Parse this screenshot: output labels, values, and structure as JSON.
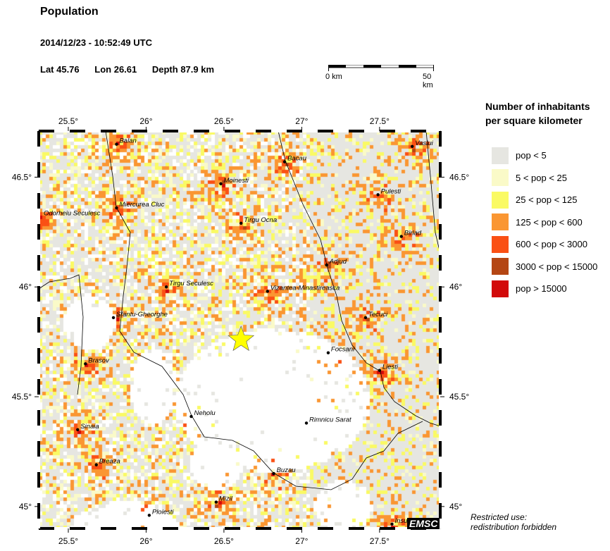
{
  "header": {
    "title": "Population",
    "datetime": "2014/12/23 - 10:52:49 UTC",
    "lat": "Lat 45.76",
    "lon": "Lon  26.61",
    "depth": "Depth  87.9 km"
  },
  "scale": {
    "start": "0 km",
    "end": "50 km"
  },
  "map": {
    "extent": {
      "lon": [
        25.31,
        27.89
      ],
      "lat": [
        44.9,
        46.71
      ]
    },
    "lon_ticks": [
      {
        "v": 25.5,
        "label": "25.5°"
      },
      {
        "v": 26,
        "label": "26°"
      },
      {
        "v": 26.5,
        "label": "26.5°"
      },
      {
        "v": 27,
        "label": "27°"
      },
      {
        "v": 27.5,
        "label": "27.5°"
      }
    ],
    "lat_ticks": [
      {
        "v": 46.5,
        "label": "46.5°"
      },
      {
        "v": 46,
        "label": "46°"
      },
      {
        "v": 45.5,
        "label": "45.5°"
      },
      {
        "v": 45,
        "label": "45°"
      }
    ],
    "epicenter": {
      "lon": 26.61,
      "lat": 45.76,
      "color": "#ffff00",
      "icon": "star-icon"
    },
    "cities": [
      {
        "name": "Balan",
        "lon": 25.81,
        "lat": 46.65
      },
      {
        "name": "Bacau",
        "lon": 26.89,
        "lat": 46.57
      },
      {
        "name": "Vaslui",
        "lon": 27.71,
        "lat": 46.64
      },
      {
        "name": "Moinesti",
        "lon": 26.48,
        "lat": 46.47
      },
      {
        "name": "Pulesti",
        "lon": 27.49,
        "lat": 46.42
      },
      {
        "name": "Miercurea Cluc",
        "lon": 25.81,
        "lat": 46.36
      },
      {
        "name": "Odorheiu Seculesc",
        "lon": 25.3,
        "lat": 46.32
      },
      {
        "name": "Tirgu Ocna",
        "lon": 26.61,
        "lat": 46.29
      },
      {
        "name": "Birlad",
        "lon": 27.64,
        "lat": 46.23
      },
      {
        "name": "Adjud",
        "lon": 27.16,
        "lat": 46.1
      },
      {
        "name": "Tirgu Seculesc",
        "lon": 26.13,
        "lat": 46.0
      },
      {
        "name": "Vizantea-Minastireasca",
        "lon": 26.78,
        "lat": 45.98
      },
      {
        "name": "Sfantu-Gheorghe",
        "lon": 25.79,
        "lat": 45.86
      },
      {
        "name": "Tecuci",
        "lon": 27.41,
        "lat": 45.86
      },
      {
        "name": "Focsani",
        "lon": 27.17,
        "lat": 45.7
      },
      {
        "name": "Brasov",
        "lon": 25.61,
        "lat": 45.65
      },
      {
        "name": "Liesti",
        "lon": 27.5,
        "lat": 45.62
      },
      {
        "name": "Neholu",
        "lon": 26.29,
        "lat": 45.41
      },
      {
        "name": "Rimnicu Sarat",
        "lon": 27.03,
        "lat": 45.38
      },
      {
        "name": "Sinaia",
        "lon": 25.56,
        "lat": 45.35
      },
      {
        "name": "Breaza",
        "lon": 25.68,
        "lat": 45.19
      },
      {
        "name": "Buzau",
        "lon": 26.82,
        "lat": 45.15
      },
      {
        "name": "Mizil",
        "lon": 26.45,
        "lat": 45.02
      },
      {
        "name": "Ploiesti",
        "lon": 26.02,
        "lat": 44.96
      },
      {
        "name": "Insu",
        "lon": 27.58,
        "lat": 44.92
      }
    ]
  },
  "legend": {
    "title_line1": "Number of inhabitants",
    "title_line2": "per square kilometer",
    "items": [
      {
        "label": "pop < 5",
        "color": "#e6e6e1"
      },
      {
        "label": "5 < pop < 25",
        "color": "#fafac8"
      },
      {
        "label": "25 < pop < 125",
        "color": "#fafa64"
      },
      {
        "label": "125 < pop < 600",
        "color": "#fa9632"
      },
      {
        "label": "600 < pop < 3000",
        "color": "#fa5014"
      },
      {
        "label": "3000 < pop < 15000",
        "color": "#b44614"
      },
      {
        "label": "pop > 15000",
        "color": "#d20a0a"
      }
    ]
  },
  "footer": {
    "note1": "Restricted use:",
    "note2": "redistribution forbidden",
    "logo": "EMSC"
  }
}
